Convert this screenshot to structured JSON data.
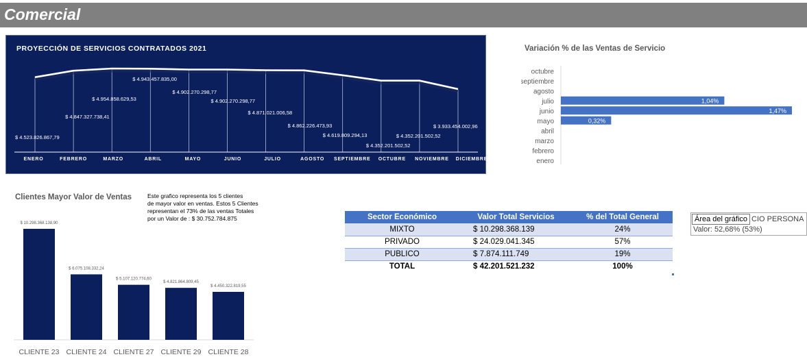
{
  "header": {
    "title": "Comercial"
  },
  "note": {
    "lines": [
      "Este grafico representa los 5 clientes",
      "de mayor valor en ventas. Estos 5 Clientes",
      "representan el  73% de las ventas Totales",
      "por un Valor de : $ 30.752.784.875"
    ]
  },
  "table": {
    "headers": [
      "Sector  Económico",
      "Valor Total  Servicios",
      "% del Total  General"
    ],
    "rows": [
      [
        "MIXTO",
        "$ 10.298.368.139",
        "24%"
      ],
      [
        "PRIVADO",
        "$ 24.029.041.345",
        "57%"
      ],
      [
        "PUBLICO",
        "$ 7.874.111.749",
        "19%"
      ]
    ],
    "total": [
      "TOTAL",
      "$ 42.201.521.232",
      "100%"
    ]
  },
  "tooltip": {
    "tip": "Área del gráfico",
    "label_line1": "CIO PERSONA",
    "label_line2": "Valor: 52,68% (53%)"
  },
  "chart_data": [
    {
      "type": "line",
      "title": "PROYECCIÓN DE SERVICIOS CONTRATADOS 2021",
      "categories": [
        "ENERO",
        "FEBRERO",
        "MARZO",
        "ABRIL",
        "MAYO",
        "JUNIO",
        "JULIO",
        "AGOSTO",
        "SEPTIEMBRE",
        "OCTUBRE",
        "NOVIEMBRE",
        "DICIEMBRE"
      ],
      "values": [
        4523826867.79,
        4847327738.41,
        4954858629.53,
        4943457835.0,
        4902270298.77,
        4902270298.77,
        4871021006.58,
        4862226473.93,
        4619809294.13,
        4352201502.52,
        4352201502.52,
        3933454002.96
      ],
      "data_labels": [
        "$ 4.523.826.867,79",
        "$ 4.847.327.738,41",
        "$ 4.954.858.629,53",
        "$ 4.943.457.835,00",
        "$ 4.902.270.298,77",
        "$ 4.902.270.298,77",
        "$ 4.871.021.006,58",
        "$ 4.862.226.473,93",
        "$ 4.619.809.294,13",
        "$ 4.352.201.502,52",
        "$ 4.352.201.502,52",
        "$ 3.933.454.002,96"
      ],
      "colors": {
        "background": "#0b1f5c",
        "line": "#ffffff"
      }
    },
    {
      "type": "bar",
      "orientation": "horizontal",
      "title": "Variación  % de las Ventas de Servicio",
      "categories": [
        "octubre",
        "septiembre",
        "agosto",
        "julio",
        "junio",
        "mayo",
        "abril",
        "marzo",
        "febrero",
        "enero"
      ],
      "values": [
        0,
        0,
        0,
        1.04,
        1.47,
        0.32,
        0,
        0,
        0,
        0
      ],
      "data_labels": [
        "",
        "",
        "",
        "1,04%",
        "1,47%",
        "0,32%",
        "",
        "",
        "",
        ""
      ],
      "colors": {
        "bar": "#4472c4"
      }
    },
    {
      "type": "bar",
      "title": "Clientes Mayor Valor de Ventas",
      "categories": [
        "CLIENTE 23",
        "CLIENTE 24",
        "CLIENTE 27",
        "CLIENTE 29",
        "CLIENTE 28"
      ],
      "values": [
        10298368138.9,
        6075108332.24,
        5107120774.6,
        4821864809.45,
        4450322819.55
      ],
      "data_labels": [
        "$ 10.298.368.138,90",
        "$ 6.075.108.332,24",
        "$ 5.107.120.774,60",
        "$ 4.821.864.809,45",
        "$ 4.450.322.819,55"
      ],
      "colors": {
        "bar": "#0b1f5c"
      }
    }
  ]
}
